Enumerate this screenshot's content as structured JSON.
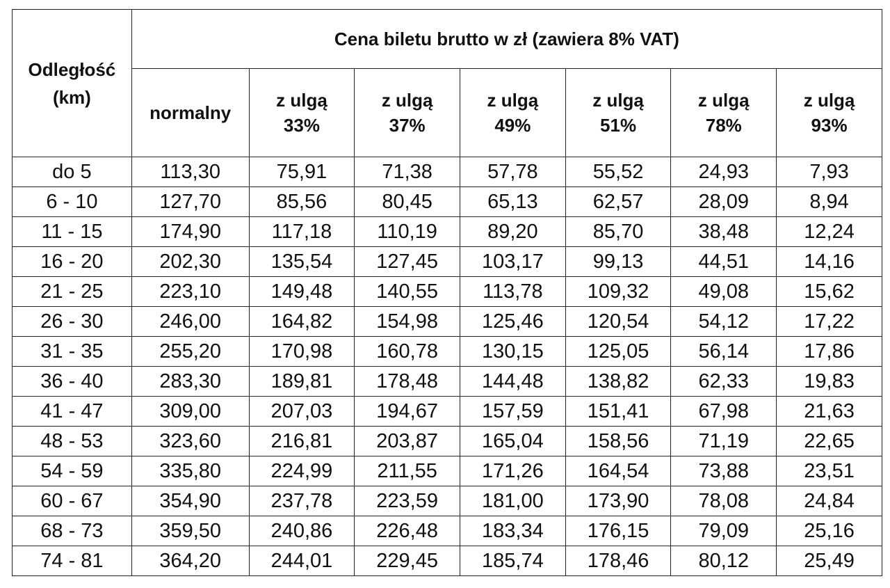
{
  "header": {
    "distance_line1": "Odległość",
    "distance_line2": "(km)",
    "price_title": "Cena biletu brutto w zł (zawiera 8% VAT)",
    "columns": [
      {
        "line1": "normalny",
        "line2": ""
      },
      {
        "line1": "z ulgą",
        "line2": "33%"
      },
      {
        "line1": "z ulgą",
        "line2": "37%"
      },
      {
        "line1": "z ulgą",
        "line2": "49%"
      },
      {
        "line1": "z ulgą",
        "line2": "51%"
      },
      {
        "line1": "z ulgą",
        "line2": "78%"
      },
      {
        "line1": "z ulgą",
        "line2": "93%"
      }
    ]
  },
  "rows": [
    [
      "do 5",
      "113,30",
      "75,91",
      "71,38",
      "57,78",
      "55,52",
      "24,93",
      "7,93"
    ],
    [
      "6 - 10",
      "127,70",
      "85,56",
      "80,45",
      "65,13",
      "62,57",
      "28,09",
      "8,94"
    ],
    [
      "11 - 15",
      "174,90",
      "117,18",
      "110,19",
      "89,20",
      "85,70",
      "38,48",
      "12,24"
    ],
    [
      "16 - 20",
      "202,30",
      "135,54",
      "127,45",
      "103,17",
      "99,13",
      "44,51",
      "14,16"
    ],
    [
      "21 - 25",
      "223,10",
      "149,48",
      "140,55",
      "113,78",
      "109,32",
      "49,08",
      "15,62"
    ],
    [
      "26 - 30",
      "246,00",
      "164,82",
      "154,98",
      "125,46",
      "120,54",
      "54,12",
      "17,22"
    ],
    [
      "31 - 35",
      "255,20",
      "170,98",
      "160,78",
      "130,15",
      "125,05",
      "56,14",
      "17,86"
    ],
    [
      "36 - 40",
      "283,30",
      "189,81",
      "178,48",
      "144,48",
      "138,82",
      "62,33",
      "19,83"
    ],
    [
      "41 - 47",
      "309,00",
      "207,03",
      "194,67",
      "157,59",
      "151,41",
      "67,98",
      "21,63"
    ],
    [
      "48 - 53",
      "323,60",
      "216,81",
      "203,87",
      "165,04",
      "158,56",
      "71,19",
      "22,65"
    ],
    [
      "54 - 59",
      "335,80",
      "224,99",
      "211,55",
      "171,26",
      "164,54",
      "73,88",
      "23,51"
    ],
    [
      "60 - 67",
      "354,90",
      "237,78",
      "223,59",
      "181,00",
      "173,90",
      "78,08",
      "24,84"
    ],
    [
      "68 - 73",
      "359,50",
      "240,86",
      "226,48",
      "183,34",
      "176,15",
      "79,09",
      "25,16"
    ],
    [
      "74 - 81",
      "364,20",
      "244,01",
      "229,45",
      "185,74",
      "178,46",
      "80,12",
      "25,49"
    ]
  ]
}
